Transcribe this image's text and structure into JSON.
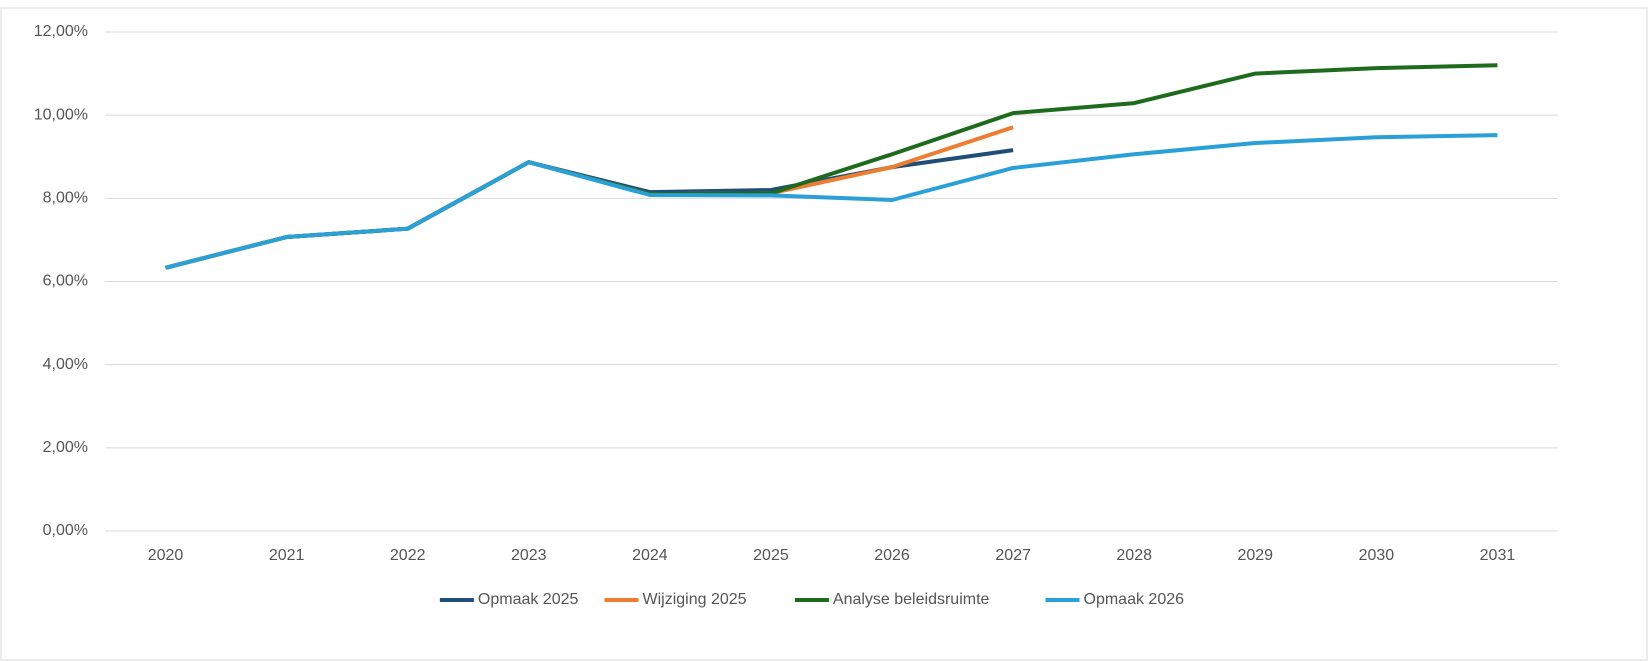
{
  "chart_data": {
    "type": "line",
    "categories": [
      "2020",
      "2021",
      "2022",
      "2023",
      "2024",
      "2025",
      "2026",
      "2027",
      "2028",
      "2029",
      "2030",
      "2031"
    ],
    "series": [
      {
        "name": "Opmaak 2025",
        "color": "#1f4e79",
        "values": [
          6.33,
          7.07,
          7.27,
          8.87,
          8.15,
          8.2,
          8.75,
          9.16,
          null,
          null,
          null,
          null
        ]
      },
      {
        "name": "Wijziging 2025",
        "color": "#ed7d31",
        "values": [
          6.33,
          7.07,
          7.27,
          8.87,
          8.1,
          8.12,
          8.75,
          9.71,
          null,
          null,
          null,
          null
        ]
      },
      {
        "name": "Analyse beleidsruimte",
        "color": "#1e6b1e",
        "values": [
          6.33,
          7.07,
          7.27,
          8.87,
          8.1,
          8.12,
          9.06,
          10.05,
          10.29,
          11.0,
          11.13,
          11.2
        ]
      },
      {
        "name": "Opmaak 2026",
        "color": "#2aa0d8",
        "values": [
          6.33,
          7.07,
          7.27,
          8.87,
          8.08,
          8.07,
          7.96,
          8.73,
          9.06,
          9.33,
          9.47,
          9.52
        ]
      }
    ],
    "ylim": [
      0,
      12
    ],
    "yticks": [
      {
        "value": 0,
        "label": "0,00%"
      },
      {
        "value": 2,
        "label": "2,00%"
      },
      {
        "value": 4,
        "label": "4,00%"
      },
      {
        "value": 6,
        "label": "6,00%"
      },
      {
        "value": 8,
        "label": "8,00%"
      },
      {
        "value": 10,
        "label": "10,00%"
      },
      {
        "value": 12,
        "label": "12,00%"
      }
    ],
    "grid": true,
    "legend": "bottom"
  }
}
